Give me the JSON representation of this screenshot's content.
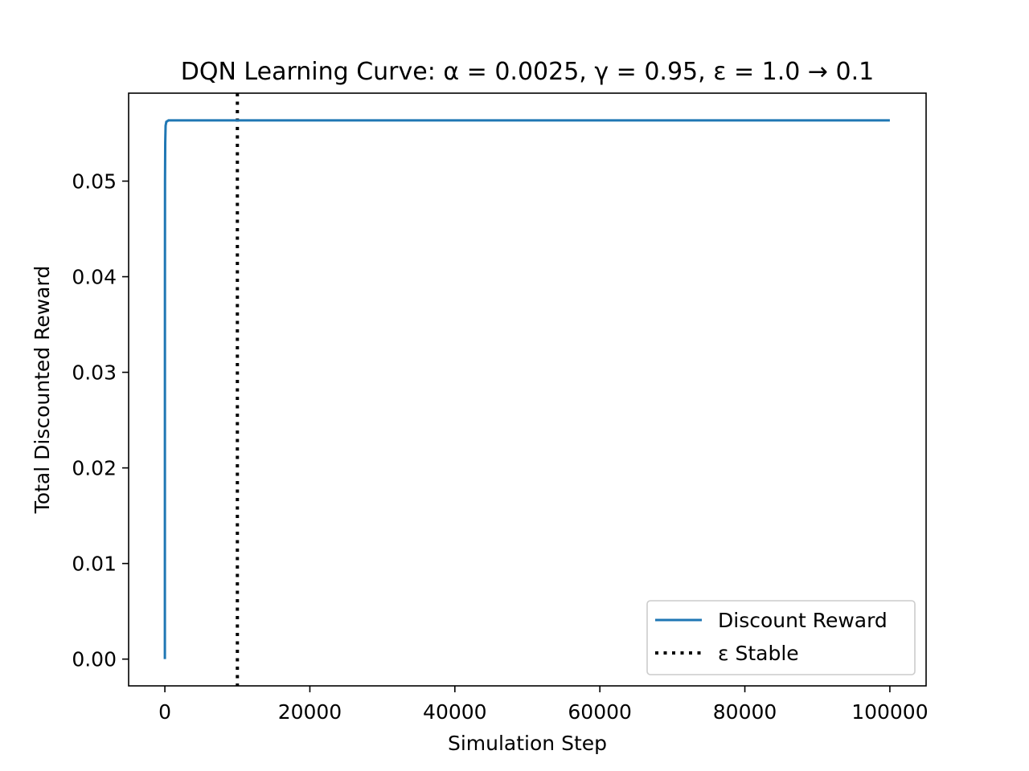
{
  "chart_data": {
    "type": "line",
    "title": "DQN Learning Curve: α = 0.0025, γ = 0.95, ε = 1.0 → 0.1",
    "xlabel": "Simulation Step",
    "ylabel": "Total Discounted Reward",
    "xlim": [
      -5000,
      105000
    ],
    "ylim": [
      -0.0028,
      0.0592
    ],
    "xticks": [
      0,
      20000,
      40000,
      60000,
      80000,
      100000
    ],
    "xtick_labels": [
      "0",
      "20000",
      "40000",
      "60000",
      "80000",
      "100000"
    ],
    "yticks": [
      0.0,
      0.01,
      0.02,
      0.03,
      0.04,
      0.05
    ],
    "ytick_labels": [
      "0.00",
      "0.01",
      "0.02",
      "0.03",
      "0.04",
      "0.05"
    ],
    "grid": false,
    "legend_position": "lower right",
    "series": [
      {
        "name": "Discount Reward",
        "color": "#1f77b4",
        "style": "solid",
        "x": [
          0,
          1,
          2,
          5,
          10,
          20,
          50,
          100,
          200,
          500,
          1000,
          100000
        ],
        "y": [
          0.0,
          0.005,
          0.012,
          0.025,
          0.04,
          0.05,
          0.054,
          0.0558,
          0.0562,
          0.05635,
          0.05635,
          0.05635
        ]
      }
    ],
    "vlines": [
      {
        "name": "ε Stable",
        "x": 10000,
        "color": "#000000",
        "style": "dotted"
      }
    ]
  }
}
